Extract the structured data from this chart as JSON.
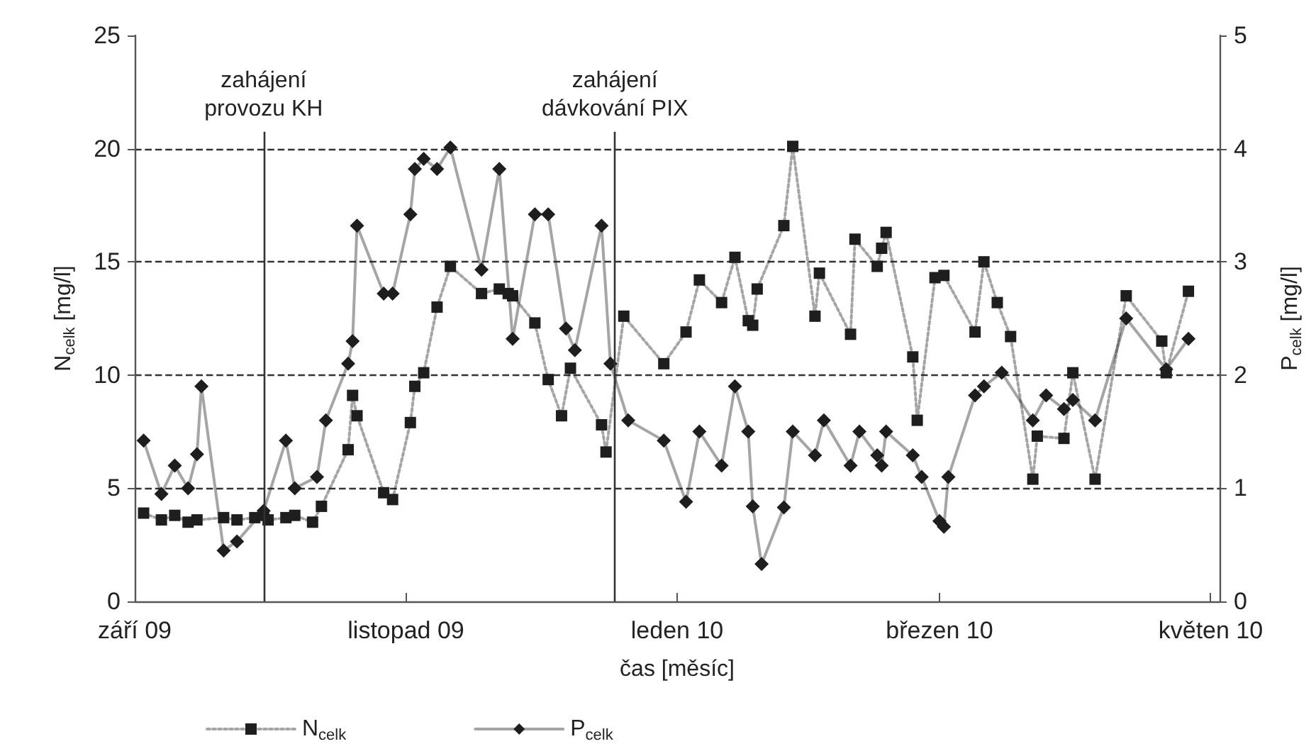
{
  "chart_data": {
    "type": "line",
    "xlabel": "čas [měsíc]",
    "ylabel": "N$_{celk}$ [mg/l]",
    "y2label": "P$_{celk}$ [mg/l]",
    "xlim": [
      "2009-09-01",
      "2010-05-03"
    ],
    "xticks": [
      {
        "value": "2009-09-01",
        "label": "září 09"
      },
      {
        "value": "2009-11-01",
        "label": "listopad 09"
      },
      {
        "value": "2010-01-01",
        "label": "leden 10"
      },
      {
        "value": "2010-03-01",
        "label": "březen 10"
      },
      {
        "value": "2010-05-01",
        "label": "květen 10"
      }
    ],
    "ylim": [
      0,
      25
    ],
    "yticks": [
      0,
      5,
      10,
      15,
      20,
      25
    ],
    "y2lim": [
      0,
      5
    ],
    "y2ticks": [
      0,
      1,
      2,
      3,
      4,
      5
    ],
    "grid": "y",
    "legend": "bottom left",
    "ref_lines": [
      {
        "axis": "x",
        "value": "2009-09-30",
        "label": "zahájení\nprovozu KH"
      },
      {
        "axis": "x",
        "value": "2009-12-18",
        "label": "zahájení\ndávkování PIX"
      }
    ],
    "series": [
      {
        "name": "N$_{celk}$",
        "color": "#1e1e1e",
        "marker": "square",
        "line_style": "dotted",
        "x": [
          "2009-09-03",
          "2009-09-07",
          "2009-09-10",
          "2009-09-13",
          "2009-09-15",
          "2009-09-21",
          "2009-09-24",
          "2009-09-28",
          "2009-09-30",
          "2009-10-01",
          "2009-10-05",
          "2009-10-07",
          "2009-10-11",
          "2009-10-13",
          "2009-10-19",
          "2009-10-20",
          "2009-10-21",
          "2009-10-27",
          "2009-10-29",
          "2009-11-02",
          "2009-11-03",
          "2009-11-05",
          "2009-11-08",
          "2009-11-11",
          "2009-11-18",
          "2009-11-22",
          "2009-11-24",
          "2009-11-25",
          "2009-11-30",
          "2009-12-03",
          "2009-12-06",
          "2009-12-08",
          "2009-12-15",
          "2009-12-16",
          "2009-12-20",
          "2009-12-29",
          "2010-01-03",
          "2010-01-06",
          "2010-01-11",
          "2010-01-14",
          "2010-01-17",
          "2010-01-18",
          "2010-01-19",
          "2010-01-25",
          "2010-01-27",
          "2010-02-01",
          "2010-02-02",
          "2010-02-09",
          "2010-02-10",
          "2010-02-15",
          "2010-02-16",
          "2010-02-17",
          "2010-02-23",
          "2010-02-24",
          "2010-02-28",
          "2010-03-02",
          "2010-03-09",
          "2010-03-11",
          "2010-03-14",
          "2010-03-17",
          "2010-03-22",
          "2010-03-23",
          "2010-03-29",
          "2010-03-31",
          "2010-04-05",
          "2010-04-12",
          "2010-04-20",
          "2010-04-21",
          "2010-04-26"
        ],
        "values": [
          3.9,
          3.6,
          3.8,
          3.5,
          3.6,
          3.7,
          3.6,
          3.7,
          3.8,
          3.6,
          3.7,
          3.8,
          3.5,
          4.2,
          6.7,
          9.1,
          8.2,
          4.8,
          4.5,
          7.9,
          9.5,
          10.1,
          13.0,
          14.8,
          13.6,
          13.8,
          13.6,
          13.5,
          12.3,
          9.8,
          8.2,
          10.3,
          7.8,
          6.6,
          12.6,
          10.5,
          11.9,
          14.2,
          13.2,
          15.2,
          12.4,
          12.2,
          13.8,
          16.6,
          20.1,
          12.6,
          14.5,
          11.8,
          16.0,
          14.8,
          15.6,
          16.3,
          10.8,
          8.0,
          14.3,
          14.4,
          11.9,
          15.0,
          13.2,
          11.7,
          5.4,
          7.3,
          7.2,
          10.1,
          5.4,
          13.5,
          11.5,
          10.1,
          13.7
        ]
      },
      {
        "name": "P$_{celk}$",
        "color": "#1e1e1e",
        "marker": "diamond",
        "line_style": "solid",
        "axis": "y2",
        "x": [
          "2009-09-03",
          "2009-09-07",
          "2009-09-10",
          "2009-09-13",
          "2009-09-15",
          "2009-09-16",
          "2009-09-21",
          "2009-09-24",
          "2009-09-30",
          "2009-10-05",
          "2009-10-07",
          "2009-10-12",
          "2009-10-14",
          "2009-10-19",
          "2009-10-20",
          "2009-10-21",
          "2009-10-27",
          "2009-10-29",
          "2009-11-02",
          "2009-11-03",
          "2009-11-05",
          "2009-11-08",
          "2009-11-11",
          "2009-11-18",
          "2009-11-22",
          "2009-11-25",
          "2009-11-30",
          "2009-12-03",
          "2009-12-07",
          "2009-12-09",
          "2009-12-15",
          "2009-12-17",
          "2009-12-21",
          "2009-12-29",
          "2010-01-03",
          "2010-01-06",
          "2010-01-11",
          "2010-01-14",
          "2010-01-17",
          "2010-01-18",
          "2010-01-20",
          "2010-01-25",
          "2010-01-27",
          "2010-02-01",
          "2010-02-03",
          "2010-02-09",
          "2010-02-11",
          "2010-02-15",
          "2010-02-16",
          "2010-02-17",
          "2010-02-23",
          "2010-02-25",
          "2010-03-01",
          "2010-03-02",
          "2010-03-03",
          "2010-03-09",
          "2010-03-11",
          "2010-03-15",
          "2010-03-22",
          "2010-03-25",
          "2010-03-29",
          "2010-03-31",
          "2010-04-05",
          "2010-04-12",
          "2010-04-21",
          "2010-04-26"
        ],
        "values": [
          1.42,
          0.95,
          1.2,
          1.0,
          1.3,
          1.9,
          0.45,
          0.53,
          0.8,
          1.42,
          1.0,
          1.1,
          1.6,
          2.1,
          2.3,
          3.32,
          2.72,
          2.72,
          3.42,
          3.82,
          3.91,
          3.82,
          4.01,
          2.93,
          3.82,
          2.32,
          3.42,
          3.42,
          2.41,
          2.22,
          3.32,
          2.1,
          1.6,
          1.42,
          0.88,
          1.5,
          1.2,
          1.9,
          1.5,
          0.84,
          0.33,
          0.83,
          1.5,
          1.29,
          1.6,
          1.2,
          1.5,
          1.29,
          1.2,
          1.5,
          1.29,
          1.1,
          0.71,
          0.66,
          1.1,
          1.82,
          1.9,
          2.02,
          1.6,
          1.82,
          1.7,
          1.78,
          1.6,
          2.5,
          2.05,
          2.32
        ]
      }
    ]
  }
}
